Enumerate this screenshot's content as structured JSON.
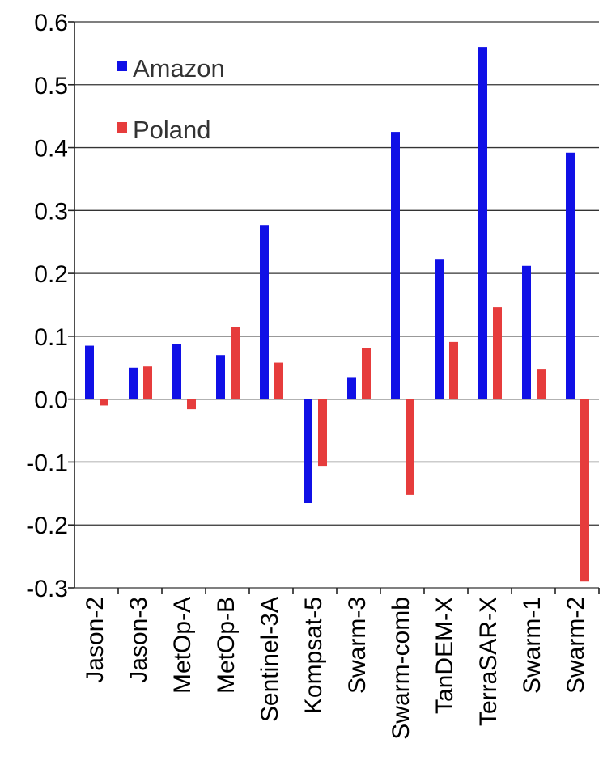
{
  "chart_data": {
    "type": "bar",
    "categories": [
      "Jason-2",
      "Jason-3",
      "MetOp-A",
      "MetOp-B",
      "Sentinel-3A",
      "Kompsat-5",
      "Swarm-3",
      "Swarm-comb",
      "TanDEM-X",
      "TerraSAR-X",
      "Swarm-1",
      "Swarm-2"
    ],
    "series": [
      {
        "name": "Amazon",
        "color": "#1010e6",
        "values": [
          0.085,
          0.05,
          0.088,
          0.07,
          0.277,
          -0.165,
          0.035,
          0.425,
          0.223,
          0.56,
          0.212,
          0.392
        ]
      },
      {
        "name": "Poland",
        "color": "#e63c3c",
        "values": [
          -0.01,
          0.052,
          -0.016,
          0.115,
          0.058,
          -0.106,
          0.081,
          -0.152,
          0.091,
          0.146,
          0.047,
          -0.29
        ]
      }
    ],
    "yticks": [
      "0.6",
      "0.5",
      "0.4",
      "0.3",
      "0.2",
      "0.1",
      "0.0",
      "-0.1",
      "-0.2",
      "-0.3"
    ],
    "ylim": [
      -0.3,
      0.6
    ],
    "grid": true,
    "legend_position": "top-left"
  }
}
